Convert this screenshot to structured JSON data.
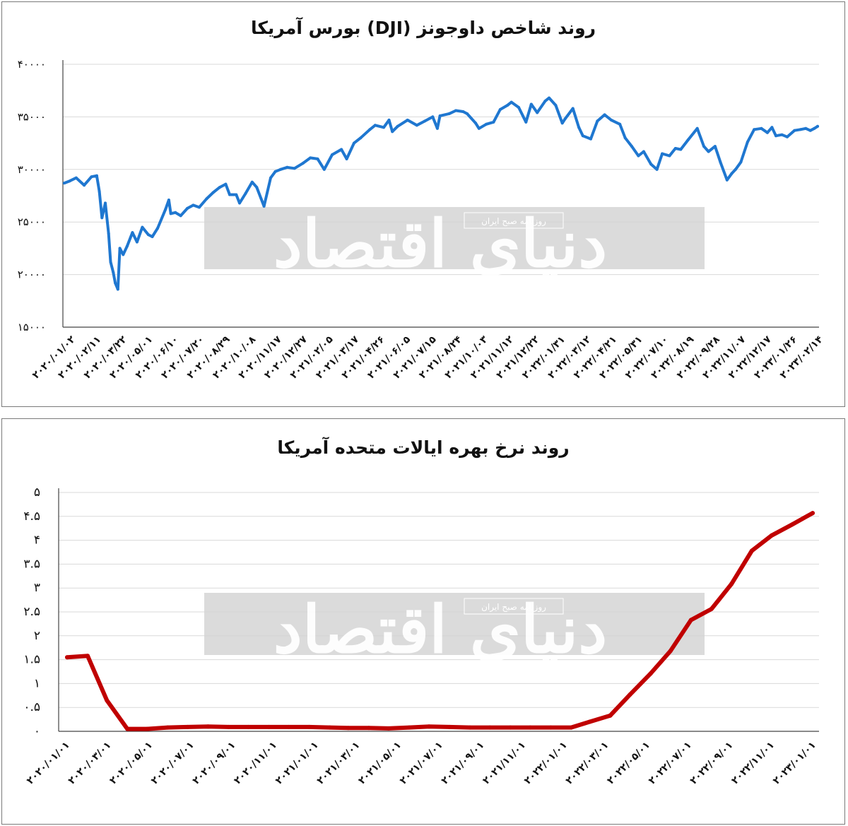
{
  "watermark": {
    "brand": "دنیای اقتصاد",
    "tagline": "روزنامه صبح ایران"
  },
  "chart_data": [
    {
      "type": "line",
      "title": "روند شاخص داوجونز (DJI) بورس آمریکا",
      "color": "#1f77d0",
      "ylim": [
        15000,
        40000
      ],
      "yticks": [
        15000,
        20000,
        25000,
        30000,
        35000,
        40000
      ],
      "ytick_labels": [
        "۱۵۰۰۰",
        "۲۰۰۰۰",
        "۲۵۰۰۰",
        "۳۰۰۰۰",
        "۳۵۰۰۰",
        "۴۰۰۰۰"
      ],
      "grid": true,
      "legend": "none",
      "xtick_labels": [
        "۲۰۲۰/۰۱/۰۲",
        "۲۰۲۰/۰۲/۱۱",
        "۲۰۲۰/۰۳/۲۲",
        "۲۰۲۰/۰۵/۰۱",
        "۲۰۲۰/۰۶/۱۰",
        "۲۰۲۰/۰۷/۲۰",
        "۲۰۲۰/۰۸/۲۹",
        "۲۰۲۰/۱۰/۰۸",
        "۲۰۲۰/۱۱/۱۷",
        "۲۰۲۰/۱۲/۲۷",
        "۲۰۲۱/۰۲/۰۵",
        "۲۰۲۱/۰۳/۱۷",
        "۲۰۲۱/۰۴/۲۶",
        "۲۰۲۱/۰۶/۰۵",
        "۲۰۲۱/۰۷/۱۵",
        "۲۰۲۱/۰۸/۲۴",
        "۲۰۲۱/۱۰/۰۳",
        "۲۰۲۱/۱۱/۱۲",
        "۲۰۲۱/۱۲/۲۲",
        "۲۰۲۲/۰۱/۳۱",
        "۲۰۲۲/۰۳/۱۲",
        "۲۰۲۲/۰۴/۲۱",
        "۲۰۲۲/۰۵/۳۱",
        "۲۰۲۲/۰۷/۱۰",
        "۲۰۲۲/۰۸/۱۹",
        "۲۰۲۲/۰۹/۲۸",
        "۲۰۲۲/۱۱/۰۷",
        "۲۰۲۲/۱۲/۱۷",
        "۲۰۲۳/۰۱/۲۶",
        "۲۰۲۳/۰۲/۱۴"
      ],
      "x_dates": [
        "2020-01-02",
        "2020-01-10",
        "2020-01-20",
        "2020-02-01",
        "2020-02-12",
        "2020-02-20",
        "2020-02-24",
        "2020-02-28",
        "2020-03-04",
        "2020-03-09",
        "2020-03-12",
        "2020-03-16",
        "2020-03-19",
        "2020-03-23",
        "2020-03-26",
        "2020-03-31",
        "2020-04-06",
        "2020-04-14",
        "2020-04-21",
        "2020-04-29",
        "2020-05-08",
        "2020-05-14",
        "2020-05-22",
        "2020-06-03",
        "2020-06-08",
        "2020-06-11",
        "2020-06-18",
        "2020-06-26",
        "2020-07-06",
        "2020-07-15",
        "2020-07-24",
        "2020-08-04",
        "2020-08-14",
        "2020-08-24",
        "2020-09-02",
        "2020-09-08",
        "2020-09-18",
        "2020-09-23",
        "2020-10-02",
        "2020-10-12",
        "2020-10-19",
        "2020-10-30",
        "2020-11-09",
        "2020-11-16",
        "2020-11-24",
        "2020-12-04",
        "2020-12-15",
        "2020-12-28",
        "2021-01-08",
        "2021-01-19",
        "2021-01-29",
        "2021-02-10",
        "2021-02-24",
        "2021-03-04",
        "2021-03-15",
        "2021-03-25",
        "2021-04-08",
        "2021-04-16",
        "2021-04-29",
        "2021-05-07",
        "2021-05-12",
        "2021-05-20",
        "2021-06-04",
        "2021-06-18",
        "2021-06-30",
        "2021-07-12",
        "2021-07-19",
        "2021-07-23",
        "2021-08-06",
        "2021-08-16",
        "2021-08-27",
        "2021-09-02",
        "2021-09-15",
        "2021-09-20",
        "2021-10-01",
        "2021-10-12",
        "2021-10-22",
        "2021-11-02",
        "2021-11-08",
        "2021-11-19",
        "2021-11-30",
        "2021-12-08",
        "2021-12-17",
        "2021-12-29",
        "2022-01-04",
        "2022-01-14",
        "2022-01-24",
        "2022-01-28",
        "2022-02-09",
        "2022-02-18",
        "2022-02-24",
        "2022-03-08",
        "2022-03-18",
        "2022-03-29",
        "2022-04-08",
        "2022-04-21",
        "2022-04-29",
        "2022-05-09",
        "2022-05-19",
        "2022-05-27",
        "2022-06-07",
        "2022-06-16",
        "2022-06-24",
        "2022-07-05",
        "2022-07-14",
        "2022-07-22",
        "2022-08-02",
        "2022-08-16",
        "2022-08-26",
        "2022-09-02",
        "2022-09-12",
        "2022-09-20",
        "2022-09-30",
        "2022-10-07",
        "2022-10-13",
        "2022-10-21",
        "2022-10-31",
        "2022-11-10",
        "2022-11-21",
        "2022-11-30",
        "2022-12-07",
        "2022-12-13",
        "2022-12-22",
        "2022-12-30",
        "2023-01-10",
        "2023-01-19",
        "2023-01-27",
        "2023-02-03",
        "2023-02-09",
        "2023-02-14"
      ],
      "values": [
        28700,
        28900,
        29200,
        28500,
        29300,
        29400,
        27900,
        25400,
        26800,
        23900,
        21200,
        20200,
        19200,
        18600,
        22500,
        21900,
        22700,
        24000,
        23100,
        24500,
        23800,
        23600,
        24400,
        26200,
        27100,
        25800,
        25900,
        25600,
        26300,
        26600,
        26400,
        27200,
        27800,
        28300,
        28600,
        27600,
        27600,
        26800,
        27700,
        28800,
        28300,
        26500,
        29200,
        29800,
        30000,
        30200,
        30100,
        30600,
        31100,
        31000,
        30000,
        31400,
        31900,
        31000,
        32500,
        33000,
        33800,
        34200,
        34000,
        34700,
        33600,
        34100,
        34700,
        34200,
        34600,
        35000,
        33900,
        35100,
        35300,
        35600,
        35500,
        35300,
        34400,
        33900,
        34300,
        34500,
        35700,
        36100,
        36400,
        35900,
        34500,
        36200,
        35400,
        36500,
        36800,
        36100,
        34400,
        34800,
        35800,
        34000,
        33200,
        32900,
        34600,
        35200,
        34700,
        34300,
        33000,
        32200,
        31300,
        31700,
        30500,
        30000,
        31500,
        31300,
        32000,
        31900,
        32800,
        33900,
        32200,
        31700,
        32200,
        30700,
        29000,
        29600,
        30000,
        30700,
        32600,
        33800,
        33900,
        33500,
        34000,
        33200,
        33300,
        33100,
        33700,
        33800,
        33900,
        33700,
        33900,
        34100
      ]
    },
    {
      "type": "line",
      "title": "روند نرخ بهره ایالات متحده آمریکا",
      "color": "#c00000",
      "ylim": [
        0,
        5
      ],
      "yticks": [
        0,
        0.5,
        1,
        1.5,
        2,
        2.5,
        3,
        3.5,
        4,
        4.5,
        5
      ],
      "ytick_labels": [
        "۰",
        "۰.۵",
        "۱",
        "۱.۵",
        "۲",
        "۲.۵",
        "۳",
        "۳.۵",
        "۴",
        "۴.۵",
        "۵"
      ],
      "grid": true,
      "legend": "none",
      "xtick_labels": [
        "۲۰۲۰/۰۱/۰۱",
        "۲۰۲۰/۰۳/۰۱",
        "۲۰۲۰/۰۵/۰۱",
        "۲۰۲۰/۰۷/۰۱",
        "۲۰۲۰/۰۹/۰۱",
        "۲۰۲۰/۱۱/۰۱",
        "۲۰۲۱/۰۱/۰۱",
        "۲۰۲۱/۰۳/۰۱",
        "۲۰۲۱/۰۵/۰۱",
        "۲۰۲۱/۰۷/۰۱",
        "۲۰۲۱/۰۹/۰۱",
        "۲۰۲۱/۱۱/۰۱",
        "۲۰۲۲/۰۱/۰۱",
        "۲۰۲۲/۰۳/۰۱",
        "۲۰۲۲/۰۵/۰۱",
        "۲۰۲۲/۰۷/۰۱",
        "۲۰۲۲/۰۹/۰۱",
        "۲۰۲۲/۱۱/۰۱",
        "۲۰۲۳/۰۱/۰۱"
      ],
      "x_dates": [
        "2020-01-01",
        "2020-02-01",
        "2020-03-01",
        "2020-04-01",
        "2020-05-01",
        "2020-06-01",
        "2020-07-01",
        "2020-08-01",
        "2020-09-01",
        "2020-10-01",
        "2020-11-01",
        "2020-12-01",
        "2021-01-01",
        "2021-02-01",
        "2021-03-01",
        "2021-04-01",
        "2021-05-01",
        "2021-06-01",
        "2021-07-01",
        "2021-08-01",
        "2021-09-01",
        "2021-10-01",
        "2021-11-01",
        "2021-12-01",
        "2022-01-01",
        "2022-02-01",
        "2022-03-01",
        "2022-04-01",
        "2022-05-01",
        "2022-06-01",
        "2022-07-01",
        "2022-08-01",
        "2022-09-01",
        "2022-10-01",
        "2022-11-01",
        "2022-12-01",
        "2023-01-01",
        "2023-02-01"
      ],
      "values": [
        1.55,
        1.58,
        0.65,
        0.05,
        0.05,
        0.08,
        0.09,
        0.1,
        0.09,
        0.09,
        0.09,
        0.09,
        0.09,
        0.08,
        0.07,
        0.07,
        0.06,
        0.08,
        0.1,
        0.09,
        0.08,
        0.08,
        0.08,
        0.08,
        0.08,
        0.08,
        0.2,
        0.33,
        0.77,
        1.21,
        1.68,
        2.33,
        2.56,
        3.08,
        3.78,
        4.1,
        4.33,
        4.57
      ]
    }
  ]
}
